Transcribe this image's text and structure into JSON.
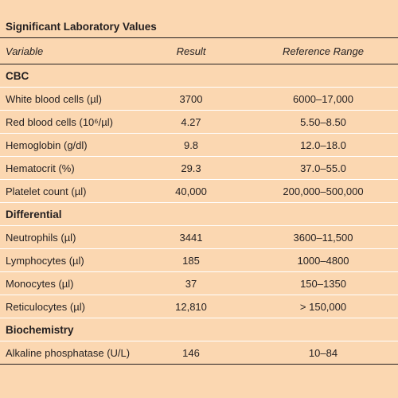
{
  "title": "Significant Laboratory Values",
  "headers": {
    "variable": "Variable",
    "result": "Result",
    "reference": "Reference Range"
  },
  "sections": [
    {
      "name": "CBC",
      "rows": [
        {
          "variable": "White blood cells (µl)",
          "result": "3700",
          "reference": "6000–17,000"
        },
        {
          "variable": "Red blood cells (10⁶/µl)",
          "result": "4.27",
          "reference": "5.50–8.50"
        },
        {
          "variable": "Hemoglobin (g/dl)",
          "result": "9.8",
          "reference": "12.0–18.0"
        },
        {
          "variable": "Hematocrit (%)",
          "result": "29.3",
          "reference": "37.0–55.0"
        },
        {
          "variable": "Platelet count (µl)",
          "result": "40,000",
          "reference": "200,000–500,000"
        }
      ]
    },
    {
      "name": "Differential",
      "rows": [
        {
          "variable": "Neutrophils (µl)",
          "result": "3441",
          "reference": "3600–11,500"
        },
        {
          "variable": "Lymphocytes (µl)",
          "result": "185",
          "reference": "1000–4800"
        },
        {
          "variable": "Monocytes (µl)",
          "result": "37",
          "reference": "150–1350"
        },
        {
          "variable": "Reticulocytes (µl)",
          "result": "12,810",
          "reference": "> 150,000"
        }
      ]
    },
    {
      "name": "Biochemistry",
      "rows": [
        {
          "variable": "Alkaline phosphatase (U/L)",
          "result": "146",
          "reference": "10–84"
        }
      ]
    }
  ]
}
